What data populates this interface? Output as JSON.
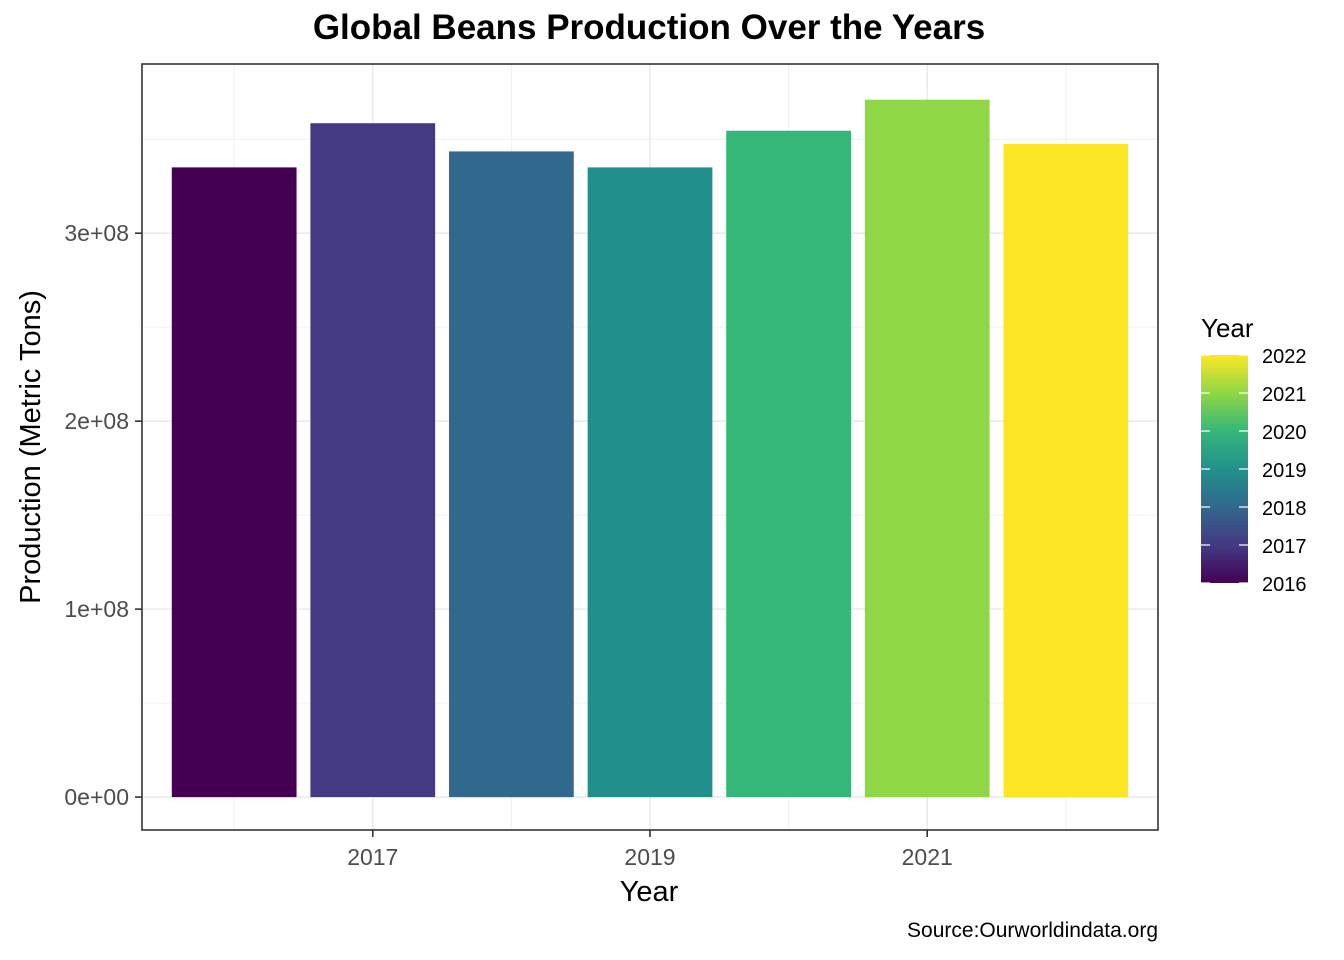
{
  "chart_data": {
    "type": "bar",
    "title": "Global Beans Production Over the Years",
    "xlabel": "Year",
    "ylabel": "Production (Metric Tons)",
    "caption": "Source:Ourworldindata.org",
    "categories": [
      2016,
      2017,
      2018,
      2019,
      2020,
      2021,
      2022
    ],
    "values": [
      335000000,
      358500000,
      343500000,
      335000000,
      354500000,
      371000000,
      347500000
    ],
    "colors": [
      "#440154",
      "#443A83",
      "#31688E",
      "#21908C",
      "#35B779",
      "#8FD744",
      "#FDE725"
    ],
    "x_tick_labels": [
      "2017",
      "2019",
      "2021"
    ],
    "x_tick_values": [
      2017,
      2019,
      2021
    ],
    "y_tick_labels": [
      "0e+00",
      "1e+08",
      "2e+08",
      "3e+08"
    ],
    "y_tick_values": [
      0,
      100000000,
      200000000,
      300000000
    ],
    "ylim": [
      -17500000,
      390000000
    ],
    "xlim": [
      2015.335,
      2022.665
    ],
    "grid": true,
    "legend": {
      "title": "Year",
      "type": "colorbar",
      "position": "right",
      "labels": [
        "2022",
        "2021",
        "2020",
        "2019",
        "2018",
        "2017",
        "2016"
      ],
      "range": [
        2016,
        2022
      ]
    }
  }
}
